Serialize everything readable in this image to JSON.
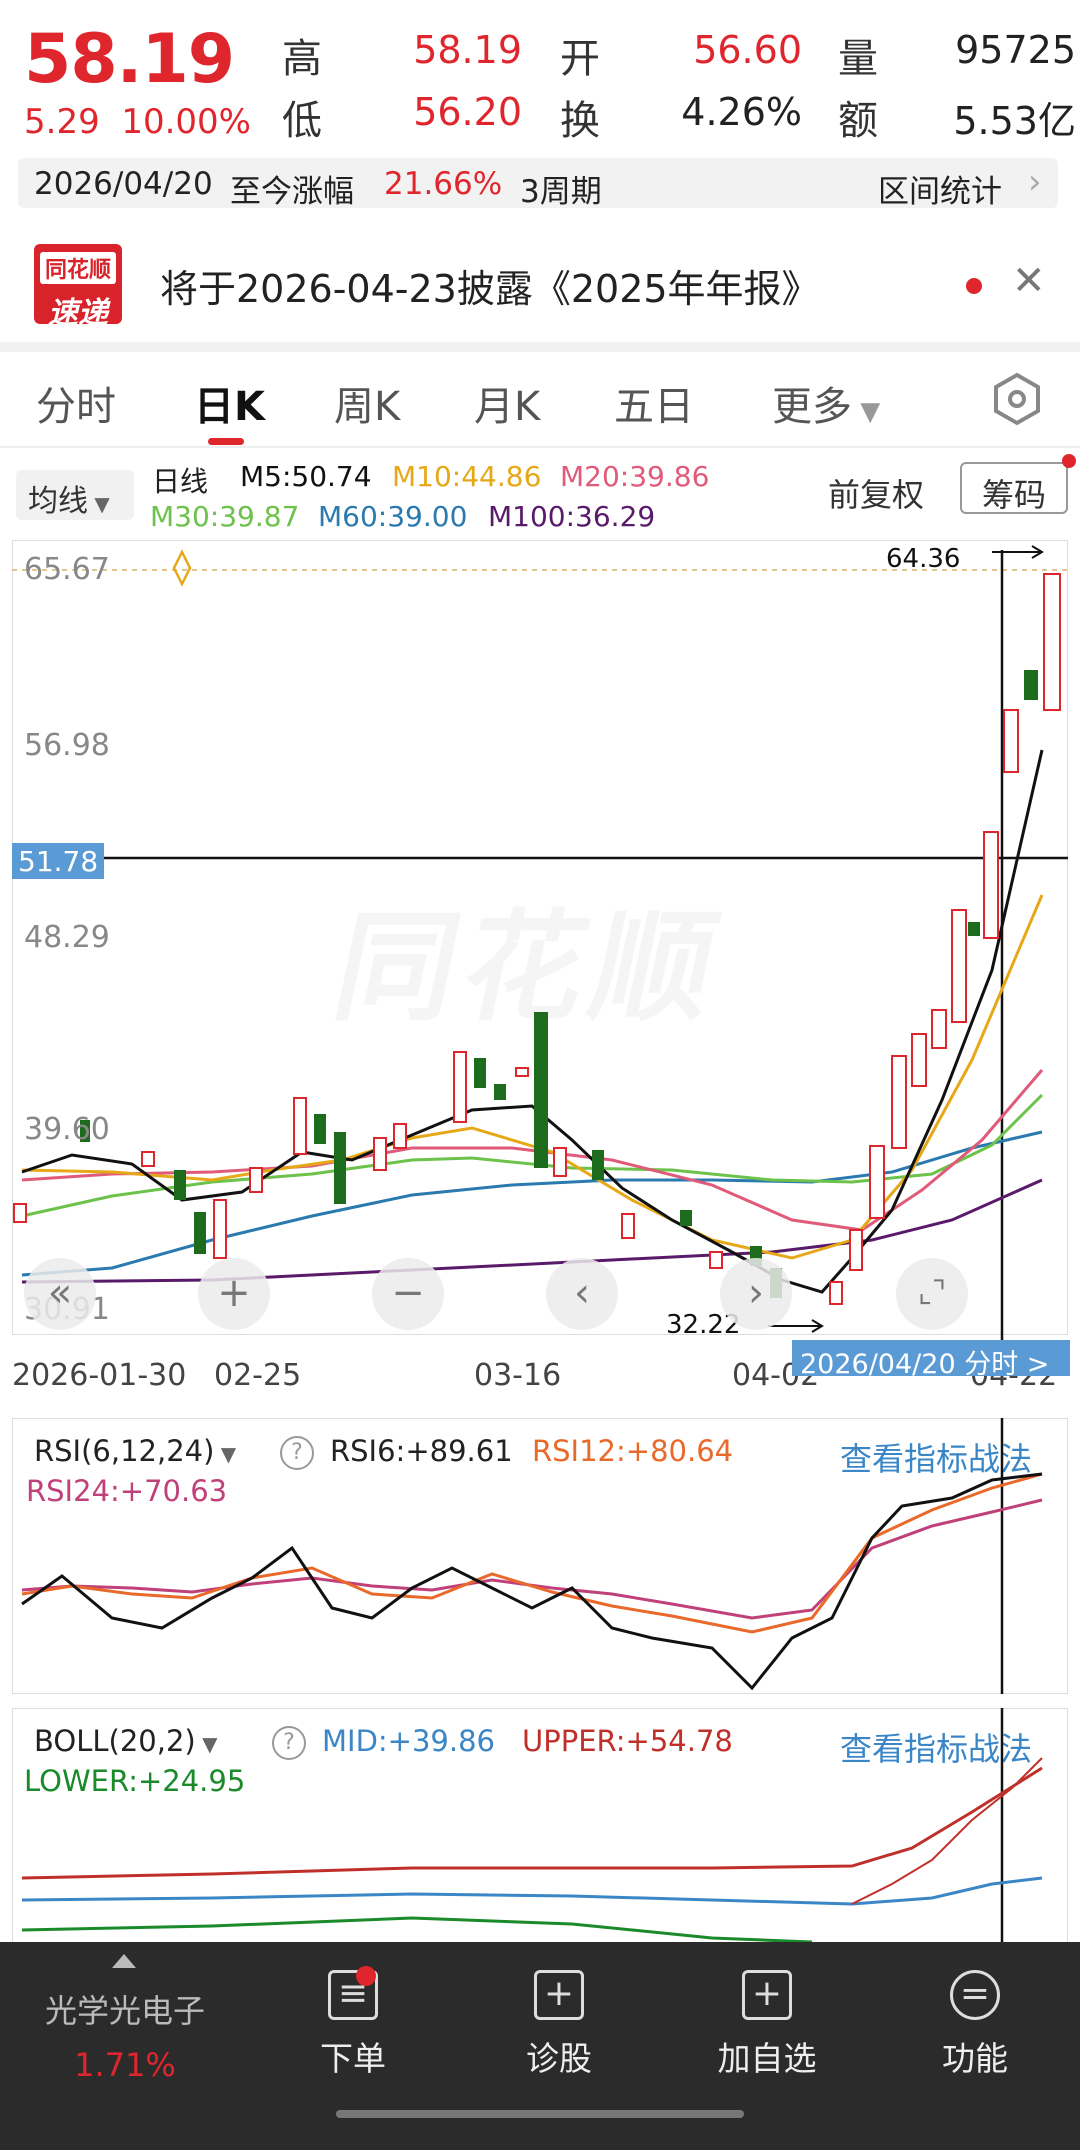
{
  "quote": {
    "price": "58.19",
    "change": "5.29",
    "change_pct": "10.00%",
    "high_label": "高",
    "high": "58.19",
    "open_label": "开",
    "open": "56.60",
    "volume_label": "量",
    "volume": "95725",
    "low_label": "低",
    "low": "56.20",
    "turnover_label": "换",
    "turnover": "4.26%",
    "amount_label": "额",
    "amount": "5.53亿"
  },
  "range": {
    "date": "2026/04/20",
    "gain_label": "至今涨幅",
    "gain": "21.66%",
    "period": "3周期",
    "stats_label": "区间统计"
  },
  "news": {
    "logo_top": "同花顺",
    "logo_bottom": "速递",
    "text": "将于2026-04-23披露《2025年年报》"
  },
  "tabs": [
    "分时",
    "日K",
    "周K",
    "月K",
    "五日",
    "更多"
  ],
  "active_tab": "日K",
  "ma": {
    "select": "均线",
    "kind": "日线",
    "m5": "M5:50.74",
    "m10": "M10:44.86",
    "m20": "M20:39.86",
    "m30": "M30:39.87",
    "m60": "M60:39.00",
    "m100": "M100:36.29",
    "fuquan": "前复权",
    "chouma": "筹码",
    "colors": {
      "m5": "#111111",
      "m10": "#e6a817",
      "m20": "#e05b7a",
      "m30": "#6cc24a",
      "m60": "#2a7ab0",
      "m100": "#5a1a6a"
    }
  },
  "kchart": {
    "y_labels": [
      "65.67",
      "56.98",
      "48.29",
      "39.60",
      "30.91"
    ],
    "current_line": "51.78",
    "max_label": "64.36",
    "min_label": "32.22",
    "watermark": "同花顺",
    "dates": [
      "2026-01-30",
      "02-25",
      "03-16",
      "04-02",
      "04-22"
    ],
    "date_tag": "2026/04/20  分时 >"
  },
  "rsi": {
    "select": "RSI(6,12,24)",
    "rsi6": "RSI6:+89.61",
    "rsi12": "RSI12:+80.64",
    "rsi24": "RSI24:+70.63",
    "link": "查看指标战法"
  },
  "boll": {
    "select": "BOLL(20,2)",
    "mid": "MID:+39.86",
    "upper": "UPPER:+54.78",
    "lower": "LOWER:+24.95",
    "link": "查看指标战法"
  },
  "bottom": {
    "sector": "光学光电子",
    "sector_pct": "1.71%",
    "order": "下单",
    "diagnose": "诊股",
    "add_watch": "加自选",
    "functions": "功能"
  }
}
